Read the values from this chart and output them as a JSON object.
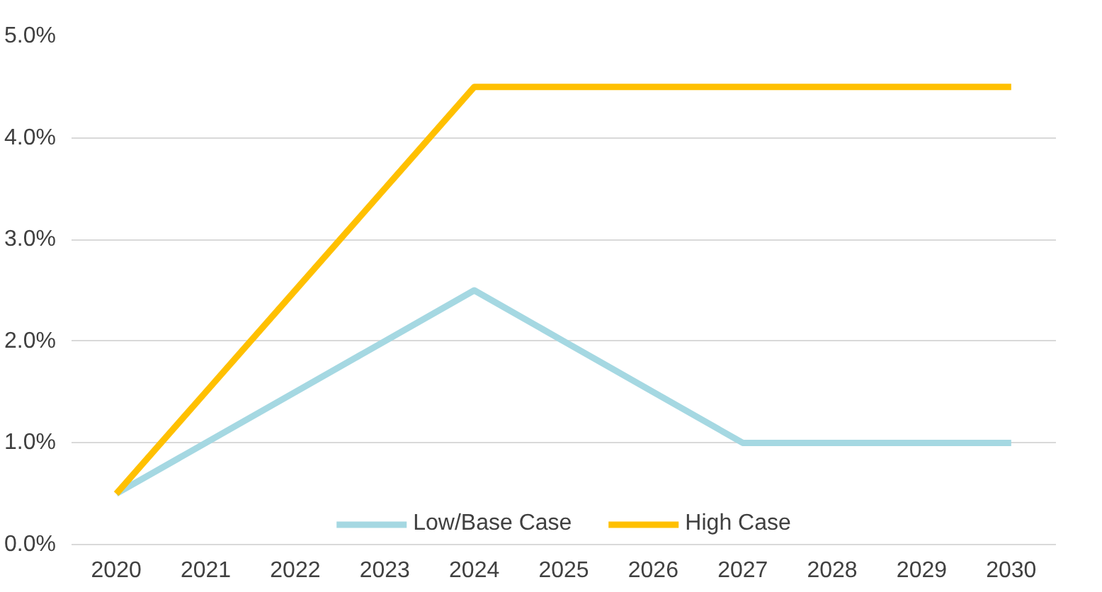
{
  "chart_data": {
    "type": "line",
    "categories": [
      "2020",
      "2021",
      "2022",
      "2023",
      "2024",
      "2025",
      "2026",
      "2027",
      "2028",
      "2029",
      "2030"
    ],
    "series": [
      {
        "name": "Low/Base Case",
        "color": "#a5d8e2",
        "values": [
          0.5,
          1.0,
          1.5,
          2.0,
          2.5,
          2.0,
          1.5,
          1.0,
          1.0,
          1.0,
          1.0
        ]
      },
      {
        "name": "High Case",
        "color": "#ffc000",
        "values": [
          0.5,
          1.5,
          2.5,
          3.5,
          4.5,
          4.5,
          4.5,
          4.5,
          4.5,
          4.5,
          4.5
        ]
      }
    ],
    "ylim": [
      0,
      5
    ],
    "yticks": [
      {
        "value": 0,
        "label": "0.0%"
      },
      {
        "value": 1,
        "label": "1.0%"
      },
      {
        "value": 2,
        "label": "2.0%"
      },
      {
        "value": 3,
        "label": "3.0%"
      },
      {
        "value": 4,
        "label": "4.0%"
      },
      {
        "value": 5,
        "label": "5.0%"
      }
    ],
    "grid": "y",
    "legend": "bottom",
    "marker": "none",
    "line_style": "solid"
  }
}
